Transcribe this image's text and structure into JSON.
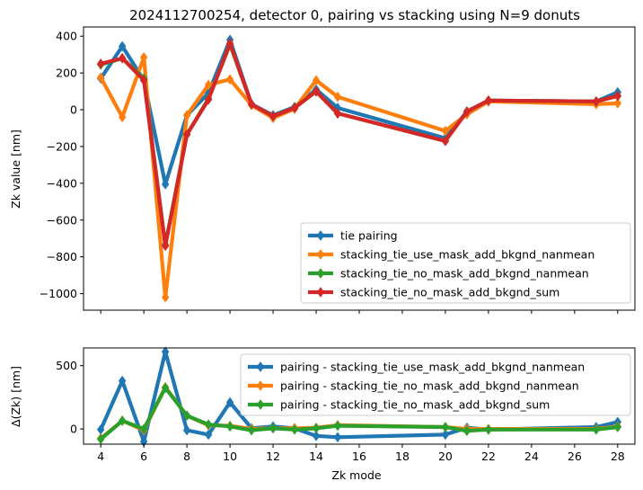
{
  "chart_data": [
    {
      "type": "line",
      "title": "2024112700254, detector 0, pairing vs stacking using N=9 donuts",
      "xlabel": "",
      "ylabel": "Zk value [nm]",
      "x": [
        4,
        5,
        6,
        7,
        8,
        9,
        10,
        11,
        12,
        13,
        14,
        15,
        20,
        21,
        22,
        27,
        28
      ],
      "xlim": [
        3.2,
        28.8
      ],
      "ylim": [
        -1090,
        450
      ],
      "yticks": [
        -1000,
        -800,
        -600,
        -400,
        -200,
        0,
        200,
        400
      ],
      "yticklabels": [
        "−1000",
        "−800",
        "−600",
        "−400",
        "−200",
        "0",
        "200",
        "400"
      ],
      "legend_position": "lower-right",
      "series": [
        {
          "name": "tie pairing",
          "color": "#1f77b4",
          "values": [
            170,
            345,
            160,
            -405,
            -30,
            90,
            380,
            30,
            -30,
            15,
            110,
            10,
            -155,
            -10,
            50,
            45,
            95
          ]
        },
        {
          "name": "stacking_tie_use_mask_add_bkgnd_nanmean",
          "color": "#ff7f0e",
          "values": [
            175,
            -40,
            285,
            -1020,
            -30,
            135,
            165,
            25,
            -45,
            5,
            160,
            70,
            -115,
            -25,
            45,
            30,
            35
          ]
        },
        {
          "name": "stacking_tie_no_mask_add_bkgnd_nanmean",
          "color": "#2ca02c",
          "values": [
            245,
            280,
            170,
            -735,
            -135,
            60,
            355,
            30,
            -35,
            10,
            100,
            -20,
            -170,
            -10,
            50,
            45,
            75
          ]
        },
        {
          "name": "stacking_tie_no_mask_add_bkgnd_sum",
          "color": "#d62728",
          "values": [
            250,
            280,
            160,
            -740,
            -135,
            55,
            360,
            30,
            -35,
            10,
            100,
            -20,
            -170,
            -10,
            50,
            45,
            75
          ]
        }
      ]
    },
    {
      "type": "line",
      "title": "",
      "xlabel": "Zk mode",
      "ylabel": "Δ(Zk) [nm]",
      "x": [
        4,
        5,
        6,
        7,
        8,
        9,
        10,
        11,
        12,
        13,
        14,
        15,
        20,
        21,
        22,
        27,
        28
      ],
      "xlim": [
        3.2,
        28.8
      ],
      "xticks": [
        4,
        6,
        8,
        10,
        12,
        14,
        16,
        18,
        20,
        22,
        24,
        26,
        28
      ],
      "xticklabels": [
        "4",
        "6",
        "8",
        "10",
        "12",
        "14",
        "16",
        "18",
        "20",
        "22",
        "24",
        "26",
        "28"
      ],
      "ylim": [
        -120,
        640
      ],
      "yticks": [
        0,
        500
      ],
      "yticklabels": [
        "0",
        "500"
      ],
      "legend_position": "upper-right",
      "series": [
        {
          "name": "pairing -  stacking_tie_use_mask_add_bkgnd_nanmean",
          "color": "#1f77b4",
          "values": [
            -5,
            380,
            -100,
            610,
            -10,
            -45,
            210,
            5,
            20,
            5,
            -55,
            -65,
            -45,
            10,
            -5,
            15,
            55
          ]
        },
        {
          "name": "pairing -  stacking_tie_no_mask_add_bkgnd_nanmean",
          "color": "#ff7f0e",
          "values": [
            -75,
            65,
            -10,
            330,
            105,
            30,
            25,
            0,
            5,
            5,
            10,
            30,
            15,
            0,
            0,
            0,
            20
          ]
        },
        {
          "name": "pairing -  stacking_tie_no_mask_add_bkgnd_sum",
          "color": "#2ca02c",
          "values": [
            -80,
            65,
            0,
            325,
            105,
            35,
            20,
            -10,
            5,
            -5,
            5,
            25,
            15,
            -15,
            -5,
            -5,
            15
          ]
        }
      ]
    }
  ]
}
